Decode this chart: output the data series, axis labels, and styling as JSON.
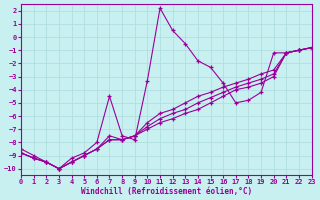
{
  "xlabel": "Windchill (Refroidissement éolien,°C)",
  "background_color": "#c8f0f0",
  "grid_color": "#b0dede",
  "line_color": "#990099",
  "xlim": [
    0,
    23
  ],
  "ylim": [
    -10.5,
    2.5
  ],
  "xticks": [
    0,
    1,
    2,
    3,
    4,
    5,
    6,
    7,
    8,
    9,
    10,
    11,
    12,
    13,
    14,
    15,
    16,
    17,
    18,
    19,
    20,
    21,
    22,
    23
  ],
  "yticks": [
    2,
    1,
    0,
    -1,
    -2,
    -3,
    -4,
    -5,
    -6,
    -7,
    -8,
    -9,
    -10
  ],
  "series": [
    {
      "x": [
        0,
        1,
        2,
        3,
        4,
        5,
        6,
        7,
        8,
        9,
        10,
        11,
        12,
        13,
        14,
        15,
        16,
        17,
        18,
        19,
        20,
        21,
        22,
        23
      ],
      "y": [
        -8.5,
        -9.0,
        -9.5,
        -10.0,
        -9.2,
        -8.8,
        -8.0,
        -4.5,
        -7.5,
        -7.8,
        -3.3,
        2.2,
        0.5,
        -0.5,
        -1.8,
        -2.3,
        -3.5,
        -5.0,
        -4.8,
        -4.2,
        -1.2,
        -1.2,
        -1.0,
        -0.8
      ]
    },
    {
      "x": [
        0,
        1,
        2,
        3,
        4,
        5,
        6,
        7,
        8,
        9,
        10,
        11,
        12,
        13,
        14,
        15,
        16,
        17,
        18,
        19,
        20,
        21,
        22,
        23
      ],
      "y": [
        -8.8,
        -9.2,
        -9.5,
        -10.0,
        -9.5,
        -9.0,
        -8.5,
        -7.8,
        -7.8,
        -7.5,
        -7.0,
        -6.5,
        -6.2,
        -5.8,
        -5.5,
        -5.0,
        -4.5,
        -4.0,
        -3.8,
        -3.5,
        -3.0,
        -1.2,
        -1.0,
        -0.8
      ]
    },
    {
      "x": [
        0,
        1,
        2,
        3,
        4,
        5,
        6,
        7,
        8,
        9,
        10,
        11,
        12,
        13,
        14,
        15,
        16,
        17,
        18,
        19,
        20,
        21,
        22,
        23
      ],
      "y": [
        -8.8,
        -9.2,
        -9.5,
        -10.0,
        -9.5,
        -9.0,
        -8.5,
        -7.8,
        -7.8,
        -7.5,
        -6.8,
        -6.2,
        -5.8,
        -5.5,
        -5.0,
        -4.6,
        -4.2,
        -3.8,
        -3.5,
        -3.2,
        -2.8,
        -1.2,
        -1.0,
        -0.8
      ]
    },
    {
      "x": [
        0,
        1,
        2,
        3,
        4,
        5,
        6,
        7,
        8,
        9,
        10,
        11,
        12,
        13,
        14,
        15,
        16,
        17,
        18,
        19,
        20,
        21,
        22,
        23
      ],
      "y": [
        -8.8,
        -9.2,
        -9.5,
        -10.0,
        -9.5,
        -9.0,
        -8.5,
        -7.5,
        -7.8,
        -7.5,
        -6.5,
        -5.8,
        -5.5,
        -5.0,
        -4.5,
        -4.2,
        -3.8,
        -3.5,
        -3.2,
        -2.8,
        -2.5,
        -1.2,
        -1.0,
        -0.8
      ]
    }
  ]
}
